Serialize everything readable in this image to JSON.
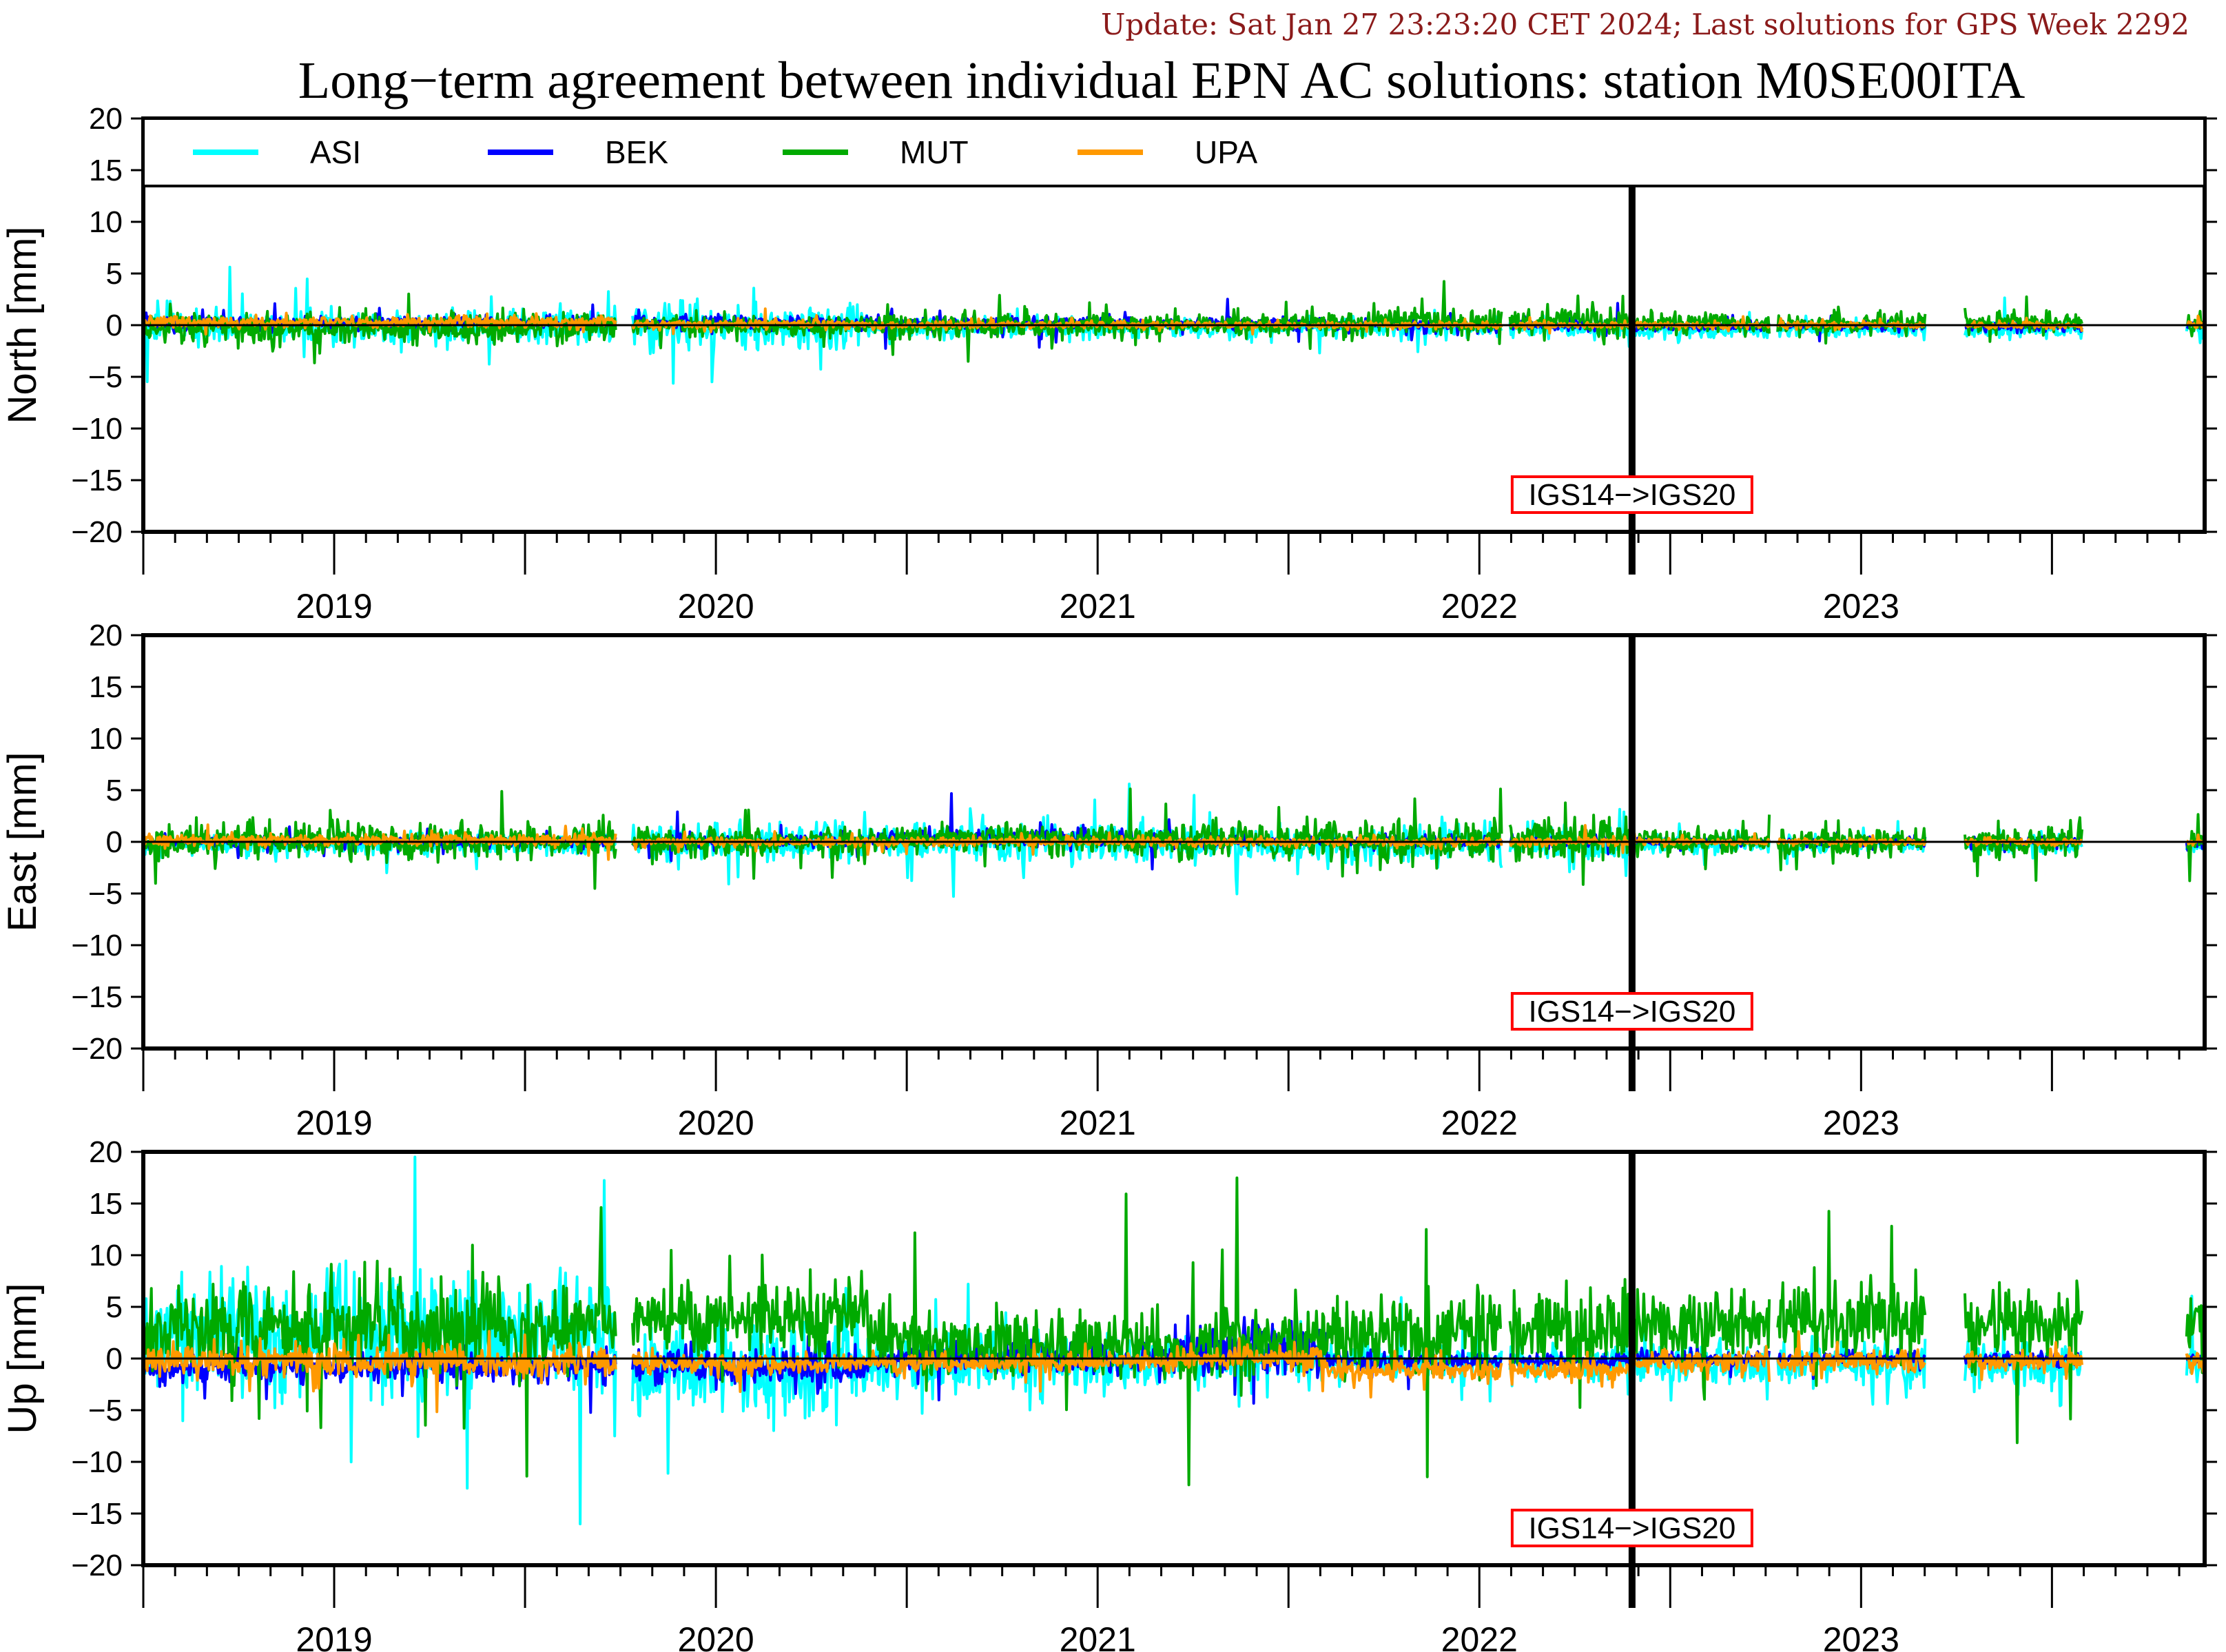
{
  "update_text": "Update: Sat Jan 27 23:23:20 CET 2024; Last solutions for GPS Week 2292",
  "title": "Long−term agreement between individual EPN AC solutions: station M0SE00ITA",
  "chart_data": {
    "type": "line",
    "x_unit": "year",
    "xlim": [
      2018.5,
      2023.9
    ],
    "x_ticks": [
      2019,
      2020,
      2021,
      2022,
      2023
    ],
    "ylim": [
      -20,
      20
    ],
    "y_ticks": [
      -20,
      -15,
      -10,
      -5,
      0,
      5,
      10,
      15,
      20
    ],
    "grid": false,
    "legend_placement": "top, inside first panel",
    "series": [
      {
        "name": "ASI",
        "color": "#00ffff"
      },
      {
        "name": "BEK",
        "color": "#0000ff"
      },
      {
        "name": "MUT",
        "color": "#00aa00"
      },
      {
        "name": "UPA",
        "color": "#ff9900"
      }
    ],
    "marker": {
      "x": 2022.4,
      "label": "IGS14−>IGS20",
      "box_color": "#ff0000"
    },
    "data_gaps": [
      [
        2019.74,
        2019.78
      ],
      [
        2022.06,
        2022.08
      ],
      [
        2022.76,
        2022.78
      ],
      [
        2023.17,
        2023.27
      ],
      [
        2023.58,
        2023.85
      ]
    ],
    "data_end": 2023.9,
    "panels": [
      {
        "ylabel": "North [mm]",
        "has_legend": true,
        "segments": [
          {
            "from": 2018.5,
            "to": 2019.75,
            "amp": {
              "ASI": 1.6,
              "BEK": 0.6,
              "MUT": 1.3,
              "UPA": 0.5
            },
            "offset": {
              "ASI": 0.0,
              "BEK": 0.2,
              "MUT": -0.3,
              "UPA": 0.3
            }
          },
          {
            "from": 2019.75,
            "to": 2020.4,
            "amp": {
              "ASI": 2.0,
              "BEK": 0.6,
              "MUT": 1.0,
              "UPA": 0.4
            },
            "offset": {
              "ASI": 0.0,
              "BEK": 0.2,
              "MUT": 0.0,
              "UPA": 0.1
            }
          },
          {
            "from": 2020.4,
            "to": 2021.6,
            "amp": {
              "ASI": 0.8,
              "BEK": 0.6,
              "MUT": 1.0,
              "UPA": 0.3
            },
            "offset": {
              "ASI": -0.3,
              "BEK": 0.2,
              "MUT": 0.0,
              "UPA": 0.0
            }
          },
          {
            "from": 2021.6,
            "to": 2022.4,
            "amp": {
              "ASI": 0.8,
              "BEK": 0.5,
              "MUT": 1.2,
              "UPA": 0.3
            },
            "offset": {
              "ASI": -0.3,
              "BEK": 0.0,
              "MUT": 0.3,
              "UPA": 0.0
            }
          },
          {
            "from": 2022.4,
            "to": 2023.9,
            "amp": {
              "ASI": 0.7,
              "BEK": 0.4,
              "MUT": 0.9,
              "UPA": 0.3
            },
            "offset": {
              "ASI": -0.4,
              "BEK": -0.1,
              "MUT": 0.2,
              "UPA": 0.0
            }
          }
        ]
      },
      {
        "ylabel": "East [mm]",
        "has_legend": false,
        "segments": [
          {
            "from": 2018.5,
            "to": 2019.75,
            "amp": {
              "ASI": 0.9,
              "BEK": 0.5,
              "MUT": 1.6,
              "UPA": 0.5
            },
            "offset": {
              "ASI": -0.2,
              "BEK": 0.0,
              "MUT": 0.0,
              "UPA": 0.2
            }
          },
          {
            "from": 2019.75,
            "to": 2020.4,
            "amp": {
              "ASI": 1.6,
              "BEK": 0.6,
              "MUT": 1.3,
              "UPA": 0.4
            },
            "offset": {
              "ASI": 0.0,
              "BEK": 0.0,
              "MUT": 0.0,
              "UPA": 0.0
            }
          },
          {
            "from": 2020.4,
            "to": 2021.2,
            "amp": {
              "ASI": 1.8,
              "BEK": 0.8,
              "MUT": 1.2,
              "UPA": 0.4
            },
            "offset": {
              "ASI": 0.0,
              "BEK": 0.4,
              "MUT": 0.3,
              "UPA": 0.0
            }
          },
          {
            "from": 2021.2,
            "to": 2022.4,
            "amp": {
              "ASI": 1.5,
              "BEK": 0.5,
              "MUT": 1.8,
              "UPA": 0.4
            },
            "offset": {
              "ASI": -0.3,
              "BEK": 0.0,
              "MUT": 0.2,
              "UPA": 0.0
            }
          },
          {
            "from": 2022.4,
            "to": 2023.9,
            "amp": {
              "ASI": 0.8,
              "BEK": 0.4,
              "MUT": 1.3,
              "UPA": 0.3
            },
            "offset": {
              "ASI": -0.3,
              "BEK": 0.0,
              "MUT": 0.0,
              "UPA": 0.0
            }
          }
        ]
      },
      {
        "ylabel": "Up [mm]",
        "has_legend": false,
        "segments": [
          {
            "from": 2018.5,
            "to": 2019.75,
            "amp": {
              "ASI": 5.0,
              "BEK": 1.2,
              "MUT": 3.5,
              "UPA": 1.3
            },
            "offset": {
              "ASI": 2.5,
              "BEK": -0.8,
              "MUT": 3.0,
              "UPA": -0.3
            }
          },
          {
            "from": 2019.75,
            "to": 2020.4,
            "amp": {
              "ASI": 4.0,
              "BEK": 1.5,
              "MUT": 3.0,
              "UPA": 0.8
            },
            "offset": {
              "ASI": -1.0,
              "BEK": -0.8,
              "MUT": 4.0,
              "UPA": -0.5
            }
          },
          {
            "from": 2020.4,
            "to": 2021.2,
            "amp": {
              "ASI": 2.5,
              "BEK": 1.3,
              "MUT": 2.8,
              "UPA": 0.8
            },
            "offset": {
              "ASI": -0.6,
              "BEK": 0.0,
              "MUT": 1.5,
              "UPA": -0.4
            }
          },
          {
            "from": 2021.2,
            "to": 2021.6,
            "amp": {
              "ASI": 2.0,
              "BEK": 2.5,
              "MUT": 3.0,
              "UPA": 1.0
            },
            "offset": {
              "ASI": 0.0,
              "BEK": 1.0,
              "MUT": 1.5,
              "UPA": 0.0
            }
          },
          {
            "from": 2021.6,
            "to": 2022.4,
            "amp": {
              "ASI": 1.5,
              "BEK": 0.7,
              "MUT": 3.5,
              "UPA": 1.0
            },
            "offset": {
              "ASI": -0.4,
              "BEK": -0.3,
              "MUT": 2.5,
              "UPA": -1.2
            }
          },
          {
            "from": 2022.4,
            "to": 2023.9,
            "amp": {
              "ASI": 1.8,
              "BEK": 0.6,
              "MUT": 3.2,
              "UPA": 1.0
            },
            "offset": {
              "ASI": -0.5,
              "BEK": 0.0,
              "MUT": 3.5,
              "UPA": -0.3
            }
          }
        ]
      }
    ]
  }
}
